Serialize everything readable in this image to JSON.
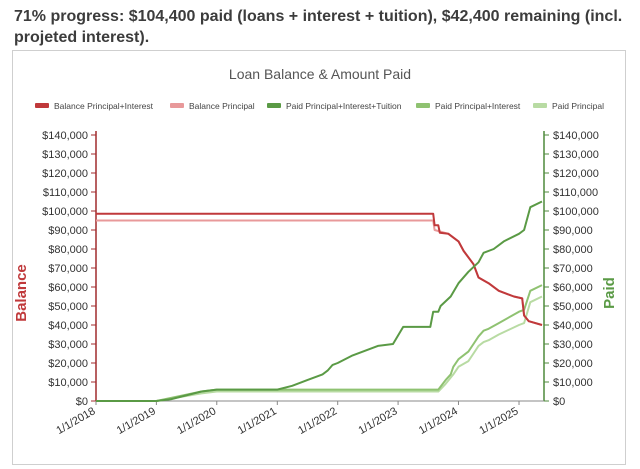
{
  "caption": "71% progress: $104,400 paid (loans + interest + tuition), $42,400 remaining (incl. projeted interest).",
  "chart_data": {
    "type": "line",
    "title": "Loan Balance & Amount Paid",
    "y_left_label": "Balance",
    "y_right_label": "Paid",
    "ylim": [
      0,
      140000
    ],
    "y_ticks": [
      0,
      10000,
      20000,
      30000,
      40000,
      50000,
      60000,
      70000,
      80000,
      90000,
      100000,
      110000,
      120000,
      130000,
      140000
    ],
    "y_tick_labels": [
      "$0",
      "$10,000",
      "$20,000",
      "$30,000",
      "$40,000",
      "$50,000",
      "$60,000",
      "$70,000",
      "$80,000",
      "$90,000",
      "$100,000",
      "$110,000",
      "$120,000",
      "$130,000",
      "$140,000"
    ],
    "xlim": [
      "2018-01-01",
      "2025-06-01"
    ],
    "x_ticks": [
      "2018-01-01",
      "2019-01-01",
      "2020-01-01",
      "2021-01-01",
      "2022-01-01",
      "2023-01-01",
      "2024-01-01",
      "2025-01-01"
    ],
    "x_tick_labels": [
      "1/1/2018",
      "1/1/2019",
      "1/1/2020",
      "1/1/2021",
      "1/1/2022",
      "1/1/2023",
      "1/1/2024",
      "1/1/2025"
    ],
    "legend_position": "top",
    "grid": false,
    "series": [
      {
        "name": "Balance Principal+Interest",
        "axis": "left",
        "color": "#c0393b",
        "points": [
          [
            "2018-01-01",
            98500
          ],
          [
            "2023-08-01",
            98500
          ],
          [
            "2023-08-10",
            92500
          ],
          [
            "2023-09-01",
            92500
          ],
          [
            "2023-09-10",
            88500
          ],
          [
            "2023-11-01",
            88000
          ],
          [
            "2024-01-01",
            84000
          ],
          [
            "2024-02-01",
            79000
          ],
          [
            "2024-04-01",
            72000
          ],
          [
            "2024-05-01",
            65000
          ],
          [
            "2024-07-01",
            62000
          ],
          [
            "2024-09-01",
            58000
          ],
          [
            "2024-12-01",
            55000
          ],
          [
            "2025-01-20",
            54000
          ],
          [
            "2025-02-01",
            45000
          ],
          [
            "2025-03-01",
            42000
          ],
          [
            "2025-05-20",
            40000
          ]
        ]
      },
      {
        "name": "Balance Principal",
        "axis": "left",
        "color": "#e8999a",
        "points": [
          [
            "2018-01-01",
            95000
          ],
          [
            "2023-08-01",
            95000
          ],
          [
            "2023-08-10",
            90000
          ],
          [
            "2023-11-01",
            88000
          ],
          [
            "2024-01-01",
            84000
          ],
          [
            "2024-02-01",
            79000
          ],
          [
            "2024-04-01",
            72000
          ],
          [
            "2024-05-01",
            65000
          ],
          [
            "2024-07-01",
            62000
          ],
          [
            "2024-09-01",
            58000
          ],
          [
            "2024-12-01",
            55000
          ],
          [
            "2025-01-20",
            54000
          ],
          [
            "2025-02-01",
            45000
          ],
          [
            "2025-03-01",
            42000
          ],
          [
            "2025-05-20",
            40000
          ]
        ]
      },
      {
        "name": "Paid Principal+Interest+Tuition",
        "axis": "right",
        "color": "#5a9a45",
        "points": [
          [
            "2018-01-01",
            0
          ],
          [
            "2019-01-01",
            0
          ],
          [
            "2019-04-01",
            1000
          ],
          [
            "2019-10-01",
            5000
          ],
          [
            "2020-01-01",
            6000
          ],
          [
            "2021-01-01",
            6000
          ],
          [
            "2021-04-01",
            8000
          ],
          [
            "2021-07-01",
            11000
          ],
          [
            "2021-10-01",
            14000
          ],
          [
            "2021-11-01",
            16000
          ],
          [
            "2021-12-01",
            19000
          ],
          [
            "2022-01-01",
            20000
          ],
          [
            "2022-04-01",
            24000
          ],
          [
            "2022-09-01",
            29000
          ],
          [
            "2022-12-01",
            30000
          ],
          [
            "2023-02-01",
            39000
          ],
          [
            "2023-07-15",
            39000
          ],
          [
            "2023-08-01",
            47000
          ],
          [
            "2023-09-01",
            47000
          ],
          [
            "2023-09-15",
            50000
          ],
          [
            "2023-11-15",
            55000
          ],
          [
            "2024-01-01",
            62000
          ],
          [
            "2024-03-01",
            68000
          ],
          [
            "2024-05-01",
            73000
          ],
          [
            "2024-06-01",
            78000
          ],
          [
            "2024-08-01",
            80000
          ],
          [
            "2024-10-01",
            84000
          ],
          [
            "2025-01-01",
            88000
          ],
          [
            "2025-02-01",
            90000
          ],
          [
            "2025-03-10",
            102000
          ],
          [
            "2025-05-20",
            105000
          ]
        ]
      },
      {
        "name": "Paid Principal+Interest",
        "axis": "right",
        "color": "#8fc271",
        "points": [
          [
            "2018-01-01",
            0
          ],
          [
            "2019-01-01",
            0
          ],
          [
            "2019-10-01",
            5000
          ],
          [
            "2020-01-01",
            6000
          ],
          [
            "2023-09-01",
            6000
          ],
          [
            "2023-10-15",
            11000
          ],
          [
            "2023-11-15",
            14000
          ],
          [
            "2023-12-01",
            18000
          ],
          [
            "2024-01-01",
            22000
          ],
          [
            "2024-03-01",
            26000
          ],
          [
            "2024-04-01",
            30000
          ],
          [
            "2024-05-01",
            34000
          ],
          [
            "2024-06-01",
            37000
          ],
          [
            "2024-07-01",
            38000
          ],
          [
            "2024-09-01",
            41000
          ],
          [
            "2025-01-01",
            47000
          ],
          [
            "2025-02-01",
            48000
          ],
          [
            "2025-03-10",
            58000
          ],
          [
            "2025-05-20",
            61000
          ]
        ]
      },
      {
        "name": "Paid Principal",
        "axis": "right",
        "color": "#b8dba3",
        "points": [
          [
            "2018-01-01",
            0
          ],
          [
            "2019-01-01",
            0
          ],
          [
            "2019-10-01",
            4000
          ],
          [
            "2020-01-01",
            5000
          ],
          [
            "2023-09-01",
            5000
          ],
          [
            "2023-10-15",
            9000
          ],
          [
            "2023-12-01",
            14000
          ],
          [
            "2024-01-01",
            18000
          ],
          [
            "2024-03-01",
            21000
          ],
          [
            "2024-04-01",
            25000
          ],
          [
            "2024-05-01",
            29000
          ],
          [
            "2024-06-01",
            31000
          ],
          [
            "2024-07-01",
            32000
          ],
          [
            "2024-09-01",
            35000
          ],
          [
            "2025-01-01",
            40000
          ],
          [
            "2025-02-01",
            41000
          ],
          [
            "2025-03-10",
            52000
          ],
          [
            "2025-05-20",
            55000
          ]
        ]
      }
    ]
  }
}
